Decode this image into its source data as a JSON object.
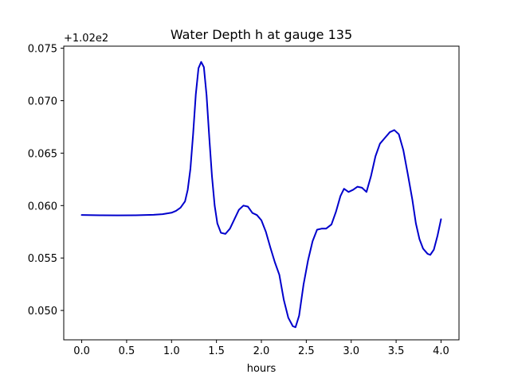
{
  "chart_data": {
    "type": "line",
    "title": "Water Depth h at gauge 135",
    "xlabel": "hours",
    "ylabel": "",
    "offset_text": "+1.02e2",
    "xlim": [
      -0.2,
      4.2
    ],
    "ylim": [
      0.0472,
      0.0752
    ],
    "xticks": [
      0.0,
      0.5,
      1.0,
      1.5,
      2.0,
      2.5,
      3.0,
      3.5,
      4.0
    ],
    "xtick_labels": [
      "0.0",
      "0.5",
      "1.0",
      "1.5",
      "2.0",
      "2.5",
      "3.0",
      "3.5",
      "4.0"
    ],
    "yticks": [
      0.05,
      0.055,
      0.06,
      0.065,
      0.07,
      0.075
    ],
    "ytick_labels": [
      "0.050",
      "0.055",
      "0.060",
      "0.065",
      "0.070",
      "0.075"
    ],
    "grid": false,
    "series": [
      {
        "color": "#0000cc",
        "points": [
          [
            0.0,
            0.0591
          ],
          [
            0.2,
            0.05908
          ],
          [
            0.4,
            0.05907
          ],
          [
            0.6,
            0.05908
          ],
          [
            0.8,
            0.05912
          ],
          [
            0.9,
            0.05918
          ],
          [
            1.0,
            0.05932
          ],
          [
            1.05,
            0.0595
          ],
          [
            1.1,
            0.0598
          ],
          [
            1.15,
            0.0604
          ],
          [
            1.18,
            0.0615
          ],
          [
            1.21,
            0.0635
          ],
          [
            1.24,
            0.0668
          ],
          [
            1.27,
            0.0706
          ],
          [
            1.3,
            0.0731
          ],
          [
            1.33,
            0.0737
          ],
          [
            1.36,
            0.0732
          ],
          [
            1.39,
            0.0705
          ],
          [
            1.42,
            0.0665
          ],
          [
            1.45,
            0.0628
          ],
          [
            1.48,
            0.06
          ],
          [
            1.51,
            0.0583
          ],
          [
            1.55,
            0.0574
          ],
          [
            1.6,
            0.0573
          ],
          [
            1.65,
            0.0578
          ],
          [
            1.7,
            0.0587
          ],
          [
            1.75,
            0.0596
          ],
          [
            1.8,
            0.06
          ],
          [
            1.85,
            0.0599
          ],
          [
            1.9,
            0.0593
          ],
          [
            1.95,
            0.0591
          ],
          [
            2.0,
            0.0586
          ],
          [
            2.05,
            0.0575
          ],
          [
            2.1,
            0.056
          ],
          [
            2.15,
            0.0546
          ],
          [
            2.2,
            0.0534
          ],
          [
            2.25,
            0.051
          ],
          [
            2.3,
            0.0493
          ],
          [
            2.35,
            0.0485
          ],
          [
            2.38,
            0.0484
          ],
          [
            2.42,
            0.0495
          ],
          [
            2.47,
            0.0525
          ],
          [
            2.52,
            0.0548
          ],
          [
            2.57,
            0.0566
          ],
          [
            2.62,
            0.0577
          ],
          [
            2.67,
            0.0578
          ],
          [
            2.72,
            0.0578
          ],
          [
            2.78,
            0.0582
          ],
          [
            2.83,
            0.0594
          ],
          [
            2.88,
            0.0609
          ],
          [
            2.92,
            0.0616
          ],
          [
            2.97,
            0.0613
          ],
          [
            3.02,
            0.0615
          ],
          [
            3.07,
            0.0618
          ],
          [
            3.12,
            0.0617
          ],
          [
            3.17,
            0.0613
          ],
          [
            3.22,
            0.0628
          ],
          [
            3.27,
            0.0647
          ],
          [
            3.32,
            0.0659
          ],
          [
            3.38,
            0.0665
          ],
          [
            3.43,
            0.067
          ],
          [
            3.48,
            0.0672
          ],
          [
            3.53,
            0.0668
          ],
          [
            3.58,
            0.0653
          ],
          [
            3.63,
            0.063
          ],
          [
            3.68,
            0.0606
          ],
          [
            3.72,
            0.0583
          ],
          [
            3.76,
            0.0568
          ],
          [
            3.8,
            0.0559
          ],
          [
            3.85,
            0.0554
          ],
          [
            3.88,
            0.0553
          ],
          [
            3.92,
            0.0558
          ],
          [
            3.96,
            0.0571
          ],
          [
            4.0,
            0.0587
          ]
        ]
      }
    ]
  }
}
